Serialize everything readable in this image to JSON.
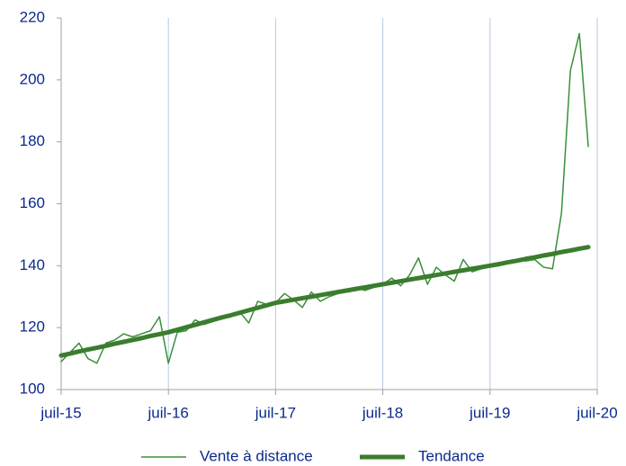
{
  "chart_data": {
    "type": "line",
    "x": [
      "2015-07",
      "2015-08",
      "2015-09",
      "2015-10",
      "2015-11",
      "2015-12",
      "2016-01",
      "2016-02",
      "2016-03",
      "2016-04",
      "2016-05",
      "2016-06",
      "2016-07",
      "2016-08",
      "2016-09",
      "2016-10",
      "2016-11",
      "2016-12",
      "2017-01",
      "2017-02",
      "2017-03",
      "2017-04",
      "2017-05",
      "2017-06",
      "2017-07",
      "2017-08",
      "2017-09",
      "2017-10",
      "2017-11",
      "2017-12",
      "2018-01",
      "2018-02",
      "2018-03",
      "2018-04",
      "2018-05",
      "2018-06",
      "2018-07",
      "2018-08",
      "2018-09",
      "2018-10",
      "2018-11",
      "2018-12",
      "2019-01",
      "2019-02",
      "2019-03",
      "2019-04",
      "2019-05",
      "2019-06",
      "2019-07",
      "2019-08",
      "2019-09",
      "2019-10",
      "2019-11",
      "2019-12",
      "2020-01",
      "2020-02",
      "2020-03",
      "2020-04",
      "2020-05",
      "2020-06"
    ],
    "series": [
      {
        "name": "Vente à distance",
        "color": "#3a8f3a",
        "width": 1.5,
        "values": [
          109,
          112,
          115,
          110,
          108.5,
          115,
          116,
          118,
          117,
          118,
          119,
          123.5,
          108.5,
          118.5,
          119,
          122.5,
          121,
          122,
          123,
          124,
          125,
          121.5,
          128.5,
          127.5,
          128,
          131,
          129,
          126.5,
          131.5,
          128.5,
          130,
          131,
          132,
          133,
          132,
          133,
          134,
          136,
          133.5,
          137,
          142.5,
          134,
          139.5,
          137,
          135,
          142,
          138,
          139,
          140,
          140,
          141,
          142,
          141.5,
          142,
          139.5,
          139,
          157,
          203,
          215,
          178.5
        ]
      },
      {
        "name": "Tendance",
        "color": "#3b7d2e",
        "width": 5,
        "values": [
          111,
          111.6,
          112.3,
          112.9,
          113.5,
          114.1,
          114.8,
          115.4,
          116,
          116.6,
          117.3,
          117.9,
          118.5,
          119.3,
          120.1,
          120.9,
          121.7,
          122.5,
          123.3,
          124,
          124.8,
          125.6,
          126.4,
          127.2,
          128,
          128.5,
          129,
          129.5,
          130,
          130.5,
          131,
          131.5,
          132,
          132.5,
          133,
          133.5,
          134,
          134.5,
          135,
          135.5,
          136,
          136.5,
          137,
          137.5,
          138,
          138.5,
          139,
          139.5,
          140,
          140.5,
          141.1,
          141.6,
          142.2,
          142.7,
          143.3,
          143.8,
          144.4,
          144.9,
          145.5,
          146
        ]
      }
    ],
    "xlim": [
      "2015-07",
      "2020-07"
    ],
    "xticks": [
      {
        "value": "2015-07",
        "label": "juil-15"
      },
      {
        "value": "2016-07",
        "label": "juil-16"
      },
      {
        "value": "2017-07",
        "label": "juil-17"
      },
      {
        "value": "2018-07",
        "label": "juil-18"
      },
      {
        "value": "2019-07",
        "label": "juil-19"
      },
      {
        "value": "2020-07",
        "label": "juil-20"
      }
    ],
    "ylim": [
      100,
      220
    ],
    "yticks": [
      100,
      120,
      140,
      160,
      180,
      200,
      220
    ],
    "grid": true,
    "legend": "bottom"
  }
}
